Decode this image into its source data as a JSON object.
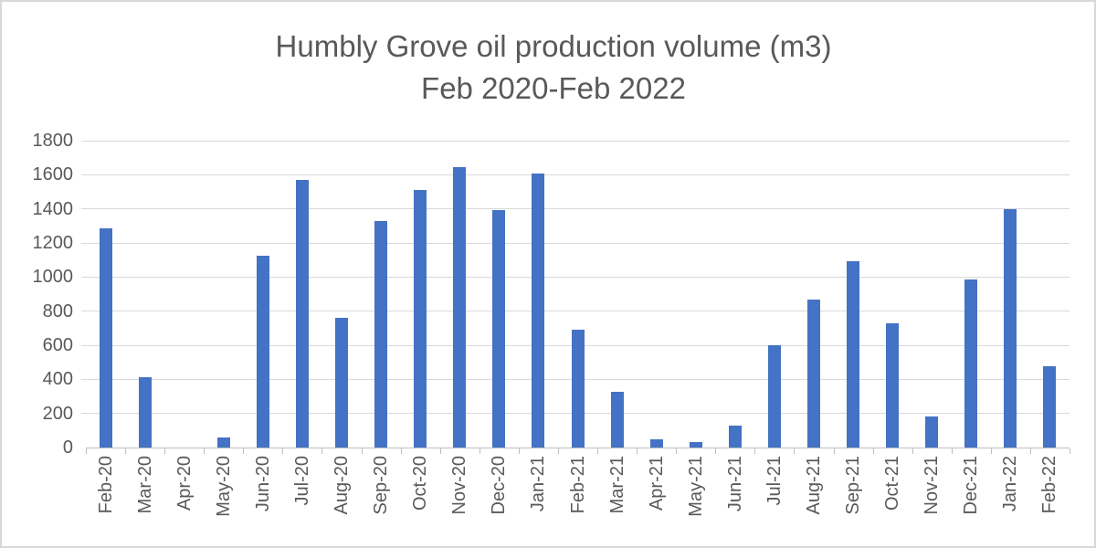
{
  "title": {
    "line1": "Humbly Grove oil production volume (m3)",
    "line2": "Feb 2020-Feb 2022"
  },
  "chart_data": {
    "type": "bar",
    "title": "Humbly Grove oil production volume (m3) Feb 2020-Feb 2022",
    "categories": [
      "Feb-20",
      "Mar-20",
      "Apr-20",
      "May-20",
      "Jun-20",
      "Jul-20",
      "Aug-20",
      "Sep-20",
      "Oct-20",
      "Nov-20",
      "Dec-20",
      "Jan-21",
      "Feb-21",
      "Mar-21",
      "Apr-21",
      "May-21",
      "Jun-21",
      "Jul-21",
      "Aug-21",
      "Sep-21",
      "Oct-21",
      "Nov-21",
      "Dec-21",
      "Jan-22",
      "Feb-22"
    ],
    "values": [
      1285,
      415,
      0,
      60,
      1125,
      1570,
      760,
      1330,
      1510,
      1645,
      1395,
      1605,
      690,
      325,
      50,
      30,
      130,
      600,
      870,
      1095,
      730,
      180,
      985,
      1400,
      475
    ],
    "xlabel": "",
    "ylabel": "",
    "ylim": [
      0,
      1800
    ],
    "ytick_interval": 200,
    "y_tick_labels": [
      "0",
      "200",
      "400",
      "600",
      "800",
      "1000",
      "1200",
      "1400",
      "1600",
      "1800"
    ],
    "grid": true,
    "legend": false,
    "colors": {
      "bar": "#4472c4",
      "gridline": "#d9d9d9",
      "axis": "#bfbfbf",
      "text": "#595959",
      "background": "#ffffff",
      "border": "#d8d8d8"
    }
  }
}
